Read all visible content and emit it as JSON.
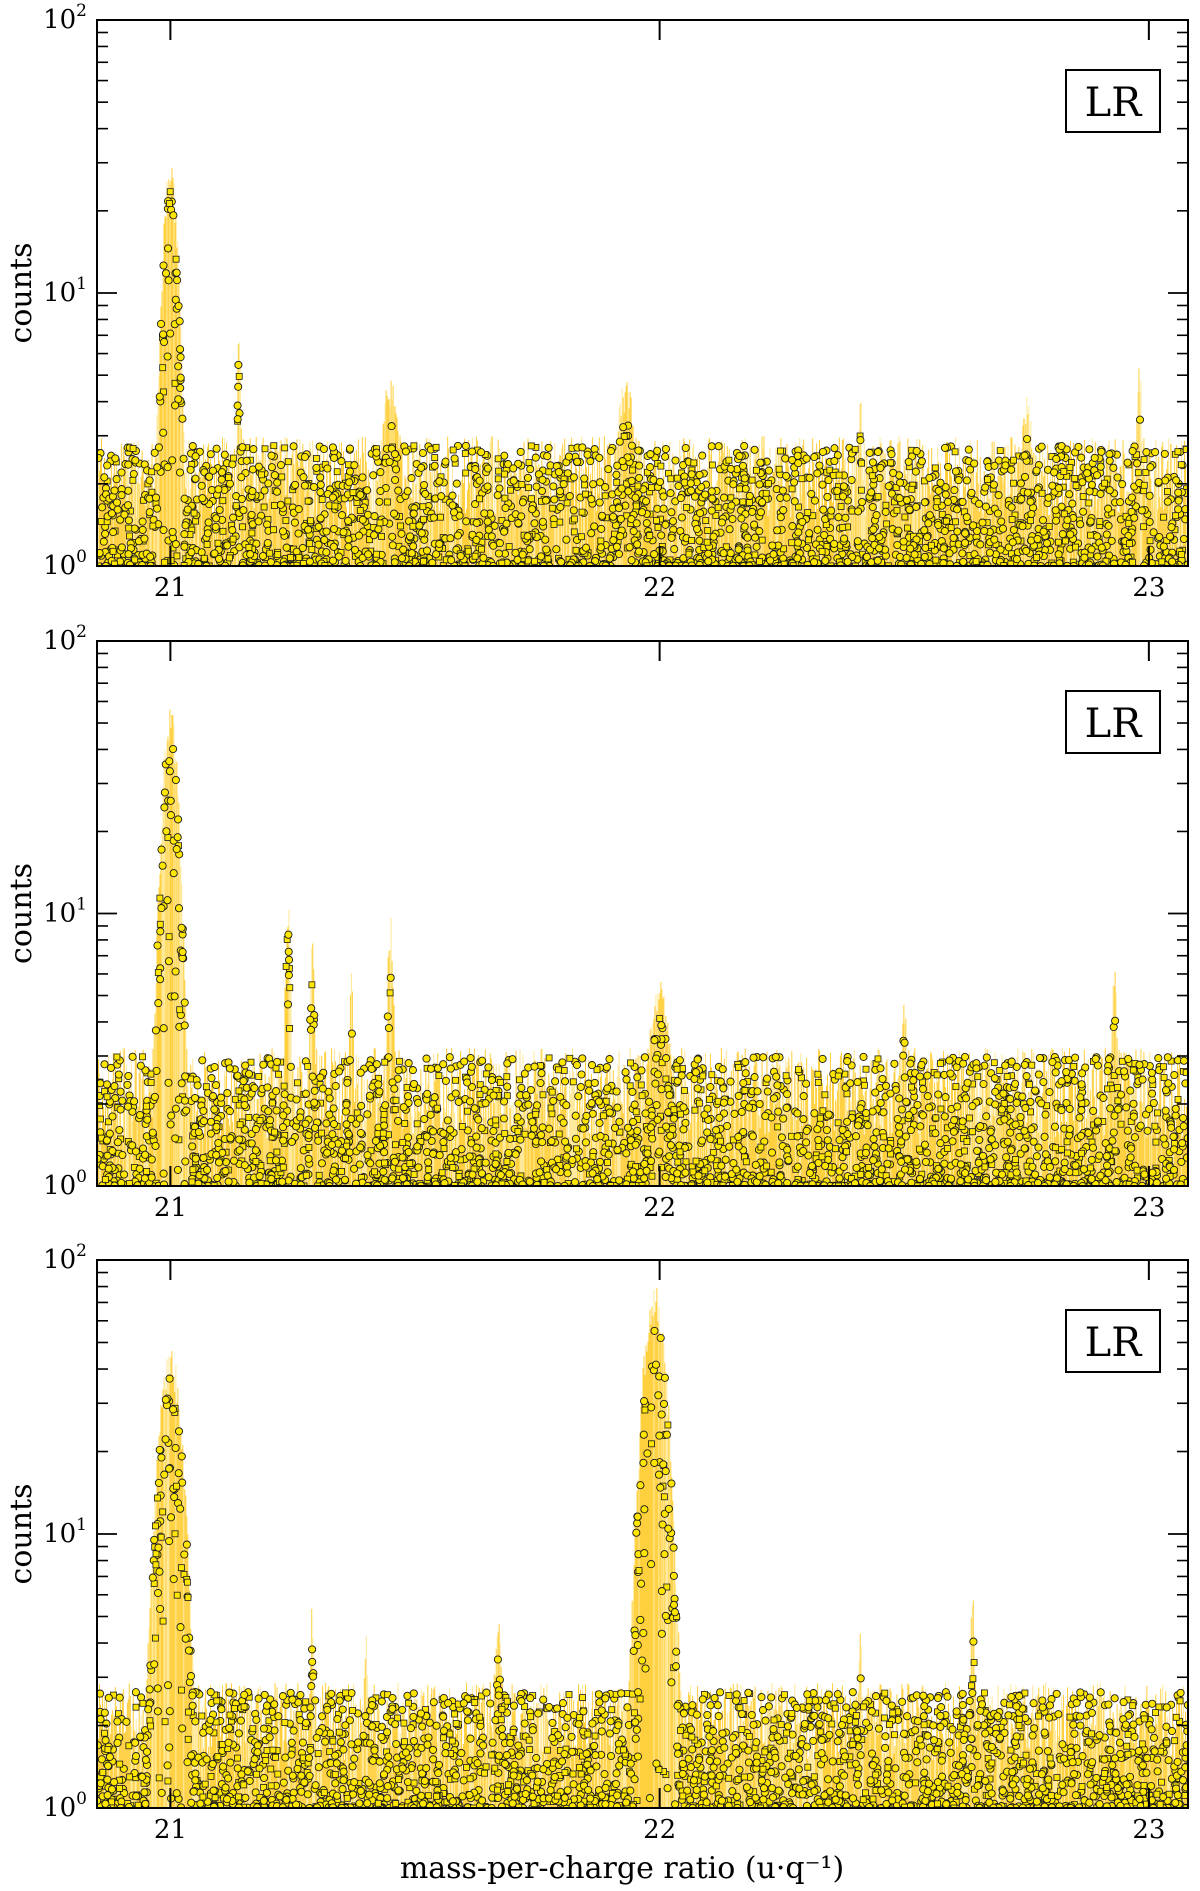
{
  "figure": {
    "xlabel": "mass-per-charge ratio (u·q⁻¹)",
    "colors": {
      "histogram": "#ffc000",
      "histogram_light": "#ffe27a",
      "marker_fill": "#ffe600",
      "marker_edge": "#1a1a1a",
      "axes": "#000000"
    }
  },
  "chart_data": [
    {
      "type": "scatter",
      "panel": "top",
      "tag": "LR",
      "ylabel": "counts",
      "yscale": "log",
      "xlim": [
        20.85,
        23.08
      ],
      "ylim": [
        1,
        100
      ],
      "xticks": [
        21,
        22,
        23
      ],
      "xtick_labels": [
        "21",
        "22",
        "23"
      ],
      "ytick_labels": [
        {
          "base": "10",
          "exp": "0"
        },
        {
          "base": "10",
          "exp": "1"
        },
        {
          "base": "10",
          "exp": "2"
        }
      ],
      "background_max": 2.6,
      "peaks": [
        {
          "x": 21.0,
          "height": 24,
          "width": 0.013
        },
        {
          "x": 21.14,
          "height": 5.7,
          "width": 0.004
        },
        {
          "x": 21.45,
          "height": 3.5,
          "width": 0.02
        },
        {
          "x": 21.93,
          "height": 3.4,
          "width": 0.02
        },
        {
          "x": 22.41,
          "height": 3.3,
          "width": 0.004
        },
        {
          "x": 22.75,
          "height": 3.1,
          "width": 0.012
        },
        {
          "x": 22.98,
          "height": 4.5,
          "width": 0.005
        }
      ]
    },
    {
      "type": "scatter",
      "panel": "middle",
      "tag": "LR",
      "ylabel": "counts",
      "yscale": "log",
      "xlim": [
        20.85,
        23.08
      ],
      "ylim": [
        1,
        100
      ],
      "xticks": [
        21,
        22,
        23
      ],
      "xtick_labels": [
        "21",
        "22",
        "23"
      ],
      "ytick_labels": [
        {
          "base": "10",
          "exp": "0"
        },
        {
          "base": "10",
          "exp": "1"
        },
        {
          "base": "10",
          "exp": "2"
        }
      ],
      "background_max": 2.8,
      "peaks": [
        {
          "x": 21.0,
          "height": 45,
          "width": 0.014
        },
        {
          "x": 21.24,
          "height": 8.8,
          "width": 0.005
        },
        {
          "x": 21.29,
          "height": 6.0,
          "width": 0.005
        },
        {
          "x": 21.37,
          "height": 4.5,
          "width": 0.004
        },
        {
          "x": 21.45,
          "height": 7.5,
          "width": 0.006
        },
        {
          "x": 22.0,
          "height": 4.2,
          "width": 0.02
        },
        {
          "x": 22.5,
          "height": 3.7,
          "width": 0.005
        },
        {
          "x": 22.93,
          "height": 5.2,
          "width": 0.005
        }
      ]
    },
    {
      "type": "scatter",
      "panel": "bottom",
      "tag": "LR",
      "ylabel": "counts",
      "yscale": "log",
      "xlim": [
        20.85,
        23.08
      ],
      "ylim": [
        1,
        100
      ],
      "xticks": [
        21,
        22,
        23
      ],
      "xtick_labels": [
        "21",
        "22",
        "23"
      ],
      "ytick_labels": [
        {
          "base": "10",
          "exp": "0"
        },
        {
          "base": "10",
          "exp": "1"
        },
        {
          "base": "10",
          "exp": "2"
        }
      ],
      "background_max": 2.5,
      "peaks": [
        {
          "x": 21.0,
          "height": 38,
          "width": 0.02
        },
        {
          "x": 21.99,
          "height": 65,
          "width": 0.02
        },
        {
          "x": 21.29,
          "height": 4.0,
          "width": 0.004
        },
        {
          "x": 21.4,
          "height": 3.4,
          "width": 0.004
        },
        {
          "x": 21.67,
          "height": 3.6,
          "width": 0.008
        },
        {
          "x": 22.41,
          "height": 3.3,
          "width": 0.004
        },
        {
          "x": 22.64,
          "height": 4.8,
          "width": 0.004
        }
      ]
    }
  ]
}
